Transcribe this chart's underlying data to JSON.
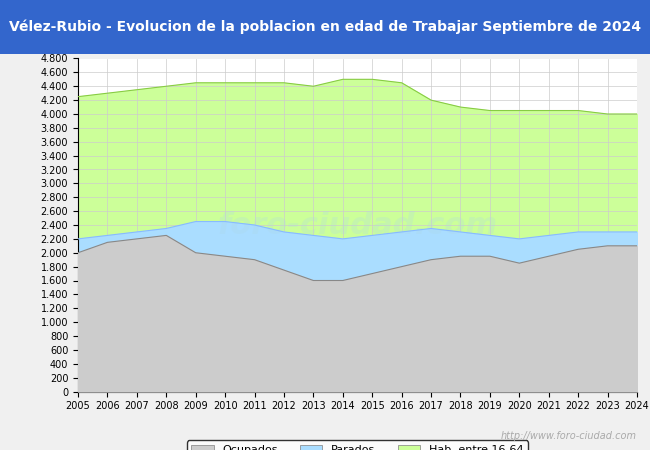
{
  "title": "Vélez-Rubio - Evolucion de la poblacion en edad de Trabajar Septiembre de 2024",
  "title_bg": "#3366cc",
  "title_color": "#ffffff",
  "ylabel": "",
  "xlabel": "",
  "ylim": [
    0,
    4800
  ],
  "yticks": [
    0,
    200,
    400,
    600,
    800,
    1000,
    1200,
    1400,
    1600,
    1800,
    2000,
    2200,
    2400,
    2600,
    2800,
    3000,
    3200,
    3400,
    3600,
    3800,
    4000,
    4200,
    4400,
    4600,
    4800
  ],
  "years": [
    2005,
    2006,
    2007,
    2008,
    2009,
    2010,
    2011,
    2012,
    2013,
    2014,
    2015,
    2016,
    2017,
    2018,
    2019,
    2020,
    2021,
    2022,
    2023,
    2024
  ],
  "ocupados": [
    2000,
    2150,
    2200,
    2250,
    2000,
    1950,
    1900,
    1750,
    1600,
    1600,
    1700,
    1800,
    1900,
    1950,
    1950,
    1850,
    1950,
    2050,
    2100,
    2100
  ],
  "parados": [
    2200,
    2250,
    2300,
    2350,
    2450,
    2450,
    2400,
    2300,
    2250,
    2200,
    2250,
    2300,
    2350,
    2300,
    2250,
    2200,
    2250,
    2300,
    2300,
    2300
  ],
  "hab_16_64": [
    4250,
    4300,
    4350,
    4400,
    4450,
    4450,
    4450,
    4450,
    4400,
    4500,
    4500,
    4450,
    4200,
    4100,
    4050,
    4050,
    4050,
    4050,
    4000,
    4000
  ],
  "color_ocupados": "#cccccc",
  "color_parados": "#aaddff",
  "color_hab": "#ccff99",
  "line_ocupados": "#888888",
  "line_parados": "#88bbff",
  "line_hab": "#88cc44",
  "watermark": "http://www.foro-ciudad.com",
  "legend_labels": [
    "Ocupados",
    "Parados",
    "Hab. entre 16-64"
  ],
  "bg_color": "#ffffff",
  "plot_bg": "#ffffff",
  "grid_color": "#cccccc"
}
